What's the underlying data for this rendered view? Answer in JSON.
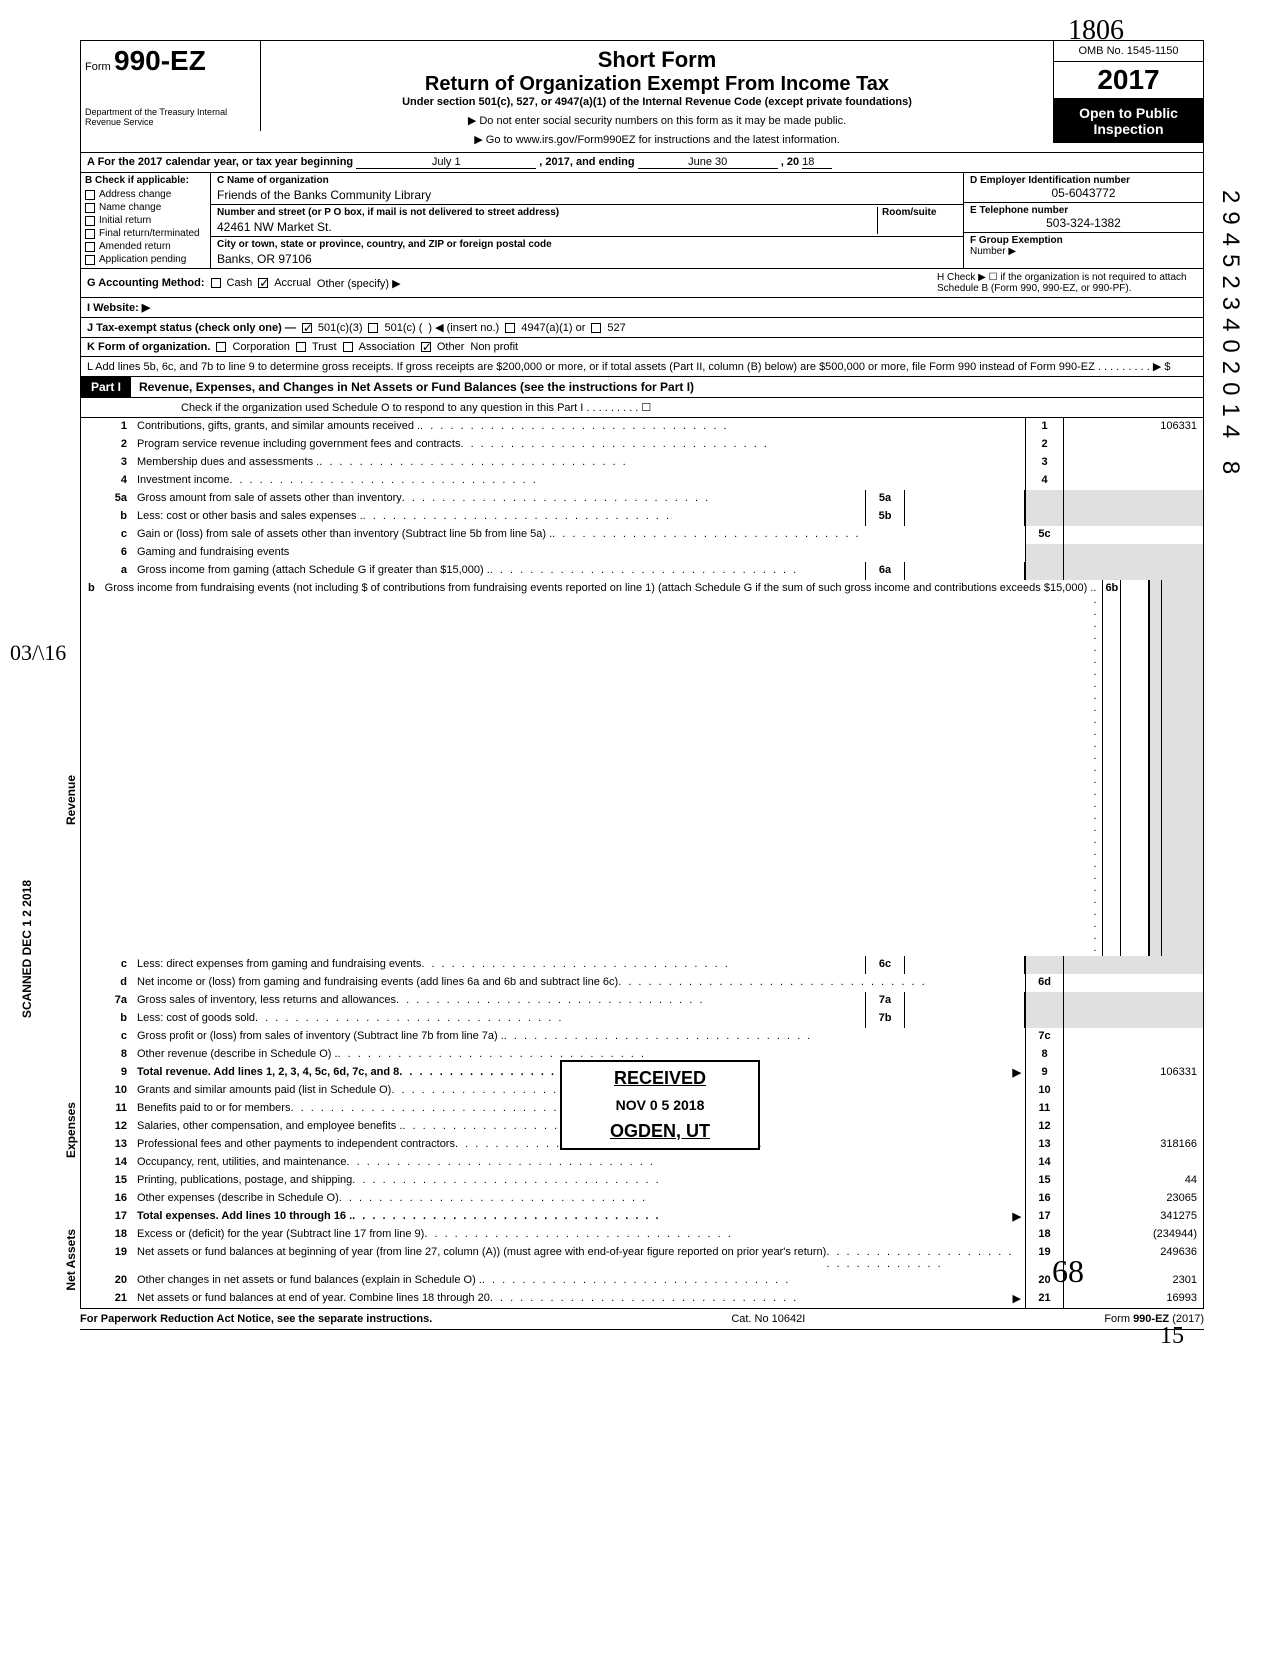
{
  "handwritten_top": "1806",
  "header": {
    "form_prefix": "Form",
    "form_number": "990-EZ",
    "dept": "Department of the Treasury\nInternal Revenue Service",
    "short_form": "Short Form",
    "title": "Return of Organization Exempt From Income Tax",
    "subtitle": "Under section 501(c), 527, or 4947(a)(1) of the Internal Revenue Code (except private foundations)",
    "warn": "▶ Do not enter social security numbers on this form as it may be made public.",
    "goto": "▶ Go to www.irs.gov/Form990EZ for instructions and the latest information.",
    "omb": "OMB No. 1545-1150",
    "year": "2017",
    "open": "Open to Public",
    "inspection": "Inspection"
  },
  "rowA": {
    "prefix": "A For the 2017 calendar year, or tax year beginning",
    "begin": "July 1",
    "mid": ", 2017, and ending",
    "end": "June 30",
    "suffix": ", 20",
    "yr2": "18"
  },
  "colB": {
    "hdr": "B Check if applicable:",
    "items": [
      "Address change",
      "Name change",
      "Initial return",
      "Final return/terminated",
      "Amended return",
      "Application pending"
    ]
  },
  "colC": {
    "name_label": "C Name of organization",
    "name": "Friends of the Banks Community Library",
    "addr_label": "Number and street (or P O  box, if mail is not delivered to street address)",
    "addr": "42461 NW Market St.",
    "room_label": "Room/suite",
    "city_label": "City or town, state or province, country, and ZIP or foreign postal code",
    "city": "Banks, OR 97106"
  },
  "colD": {
    "ein_label": "D Employer Identification number",
    "ein": "05-6043772",
    "tel_label": "E Telephone number",
    "tel": "503-324-1382",
    "grp_label": "F Group Exemption",
    "grp2": "Number ▶"
  },
  "rowG": {
    "label": "G Accounting Method:",
    "cash": "Cash",
    "accrual": "Accrual",
    "other": "Other (specify) ▶"
  },
  "rowH": {
    "text": "H Check ▶ ☐ if the organization is not required to attach Schedule B (Form 990, 990-EZ, or 990-PF)."
  },
  "rowI": {
    "label": "I  Website: ▶"
  },
  "rowJ": {
    "label": "J Tax-exempt status (check only one) —",
    "c3": "501(c)(3)",
    "c": "501(c) (",
    "insert": ") ◀ (insert no.)",
    "a": "4947(a)(1) or",
    "s527": "527"
  },
  "rowK": {
    "label": "K Form of organization.",
    "corp": "Corporation",
    "trust": "Trust",
    "assoc": "Association",
    "other": "Other",
    "other_val": "Non profit"
  },
  "rowL": {
    "text": "L Add lines 5b, 6c, and 7b to line 9 to determine gross receipts. If gross receipts are $200,000 or more, or if total assets (Part II, column (B) below) are $500,000 or more, file Form 990 instead of Form 990-EZ .    .    .    .    .    .    .    .    .   ▶   $"
  },
  "part1": {
    "label": "Part I",
    "title": "Revenue, Expenses, and Changes in Net Assets or Fund Balances (see the instructions for Part I)",
    "check": "Check if the organization used Schedule O to respond to any question in this Part I  .   .   .   .   .   .   .   .   .  ☐"
  },
  "sections": {
    "revenue": "Revenue",
    "expenses": "Expenses",
    "netassets": "Net Assets"
  },
  "lines": {
    "l1": {
      "n": "1",
      "t": "Contributions, gifts, grants, and similar amounts received .",
      "box": "1",
      "v": "106331"
    },
    "l2": {
      "n": "2",
      "t": "Program service revenue including government fees and contracts",
      "box": "2",
      "v": ""
    },
    "l3": {
      "n": "3",
      "t": "Membership dues and assessments .",
      "box": "3",
      "v": ""
    },
    "l4": {
      "n": "4",
      "t": "Investment income",
      "box": "4",
      "v": ""
    },
    "l5a": {
      "n": "5a",
      "t": "Gross amount from sale of assets other than inventory",
      "mid": "5a"
    },
    "l5b": {
      "n": "b",
      "t": "Less: cost or other basis and sales expenses .",
      "mid": "5b"
    },
    "l5c": {
      "n": "c",
      "t": "Gain or (loss) from sale of assets other than inventory (Subtract line 5b from line 5a)  .",
      "box": "5c",
      "v": ""
    },
    "l6": {
      "n": "6",
      "t": "Gaming and fundraising events"
    },
    "l6a": {
      "n": "a",
      "t": "Gross income from gaming (attach Schedule G if greater than $15,000) .",
      "mid": "6a"
    },
    "l6b": {
      "n": "b",
      "t": "Gross income from fundraising events (not including  $                    of contributions from fundraising events reported on line 1) (attach Schedule G if the sum of such gross income and contributions exceeds $15,000) .",
      "mid": "6b"
    },
    "l6c": {
      "n": "c",
      "t": "Less: direct expenses from gaming and fundraising events",
      "mid": "6c"
    },
    "l6d": {
      "n": "d",
      "t": "Net income or (loss) from gaming and fundraising events (add lines 6a and 6b and subtract line 6c)",
      "box": "6d",
      "v": ""
    },
    "l7a": {
      "n": "7a",
      "t": "Gross sales of inventory, less returns and allowances",
      "mid": "7a"
    },
    "l7b": {
      "n": "b",
      "t": "Less: cost of goods sold",
      "mid": "7b"
    },
    "l7c": {
      "n": "c",
      "t": "Gross profit or (loss) from sales of inventory (Subtract line 7b from line 7a) .",
      "box": "7c",
      "v": ""
    },
    "l8": {
      "n": "8",
      "t": "Other revenue (describe in Schedule O) .",
      "box": "8",
      "v": ""
    },
    "l9": {
      "n": "9",
      "t": "Total revenue. Add lines 1, 2, 3, 4, 5c, 6d, 7c, and 8",
      "box": "9",
      "v": "106331",
      "bold": true
    },
    "l10": {
      "n": "10",
      "t": "Grants and similar amounts paid (list in Schedule O)",
      "box": "10",
      "v": ""
    },
    "l11": {
      "n": "11",
      "t": "Benefits paid to or for members",
      "box": "11",
      "v": ""
    },
    "l12": {
      "n": "12",
      "t": "Salaries, other compensation, and employee benefits  .",
      "box": "12",
      "v": ""
    },
    "l13": {
      "n": "13",
      "t": "Professional fees and other payments to independent contractors",
      "box": "13",
      "v": "318166"
    },
    "l14": {
      "n": "14",
      "t": "Occupancy, rent, utilities, and maintenance",
      "box": "14",
      "v": ""
    },
    "l15": {
      "n": "15",
      "t": "Printing, publications, postage, and shipping",
      "box": "15",
      "v": "44"
    },
    "l16": {
      "n": "16",
      "t": "Other expenses (describe in Schedule O)",
      "box": "16",
      "v": "23065"
    },
    "l17": {
      "n": "17",
      "t": "Total expenses. Add lines 10 through 16 .",
      "box": "17",
      "v": "341275",
      "bold": true
    },
    "l18": {
      "n": "18",
      "t": "Excess or (deficit) for the year (Subtract line 17 from line 9)",
      "box": "18",
      "v": "(234944)"
    },
    "l19": {
      "n": "19",
      "t": "Net assets or fund balances at beginning of year (from line 27, column (A)) (must agree with end-of-year figure reported on prior year's return)",
      "box": "19",
      "v": "249636"
    },
    "l20": {
      "n": "20",
      "t": "Other changes in net assets or fund balances (explain in Schedule O) .",
      "box": "20",
      "v": "2301"
    },
    "l21": {
      "n": "21",
      "t": "Net assets or fund balances at end of year. Combine lines 18 through 20",
      "box": "21",
      "v": "16993"
    }
  },
  "footer": {
    "left": "For Paperwork Reduction Act Notice, see the separate instructions.",
    "mid": "Cat. No 10642I",
    "right": "Form 990-EZ (2017)"
  },
  "stamp": {
    "recv": "RECEIVED",
    "date": "NOV  0 5  2018",
    "loc": "OGDEN, UT"
  },
  "scanned": "SCANNED DEC 1 2 2018",
  "margin_hand": "03/\\16",
  "right_margin": "294523402014 8",
  "bottom_hand1": "68",
  "bottom_hand2": "15"
}
